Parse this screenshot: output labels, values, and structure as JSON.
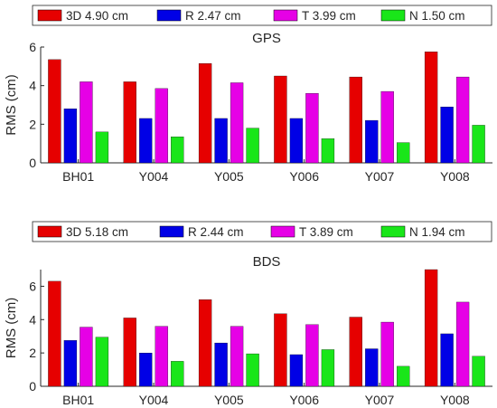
{
  "colors": {
    "3D": "#e60000",
    "R": "#0000e6",
    "T": "#e600e6",
    "N": "#19e619",
    "axis": "#262626"
  },
  "chart_data": [
    {
      "type": "bar",
      "title": "GPS",
      "ylabel": "RMS (cm)",
      "ylim": [
        0,
        6
      ],
      "yticks": [
        "0",
        "2",
        "4",
        "6"
      ],
      "categories": [
        "BH01",
        "Y004",
        "Y005",
        "Y006",
        "Y007",
        "Y008"
      ],
      "legend_position": "top",
      "grid": false,
      "series": [
        {
          "key": "3D",
          "name": "3D 4.90 cm",
          "values": [
            5.35,
            4.2,
            5.15,
            4.5,
            4.45,
            5.75
          ]
        },
        {
          "key": "R",
          "name": "R 2.47 cm",
          "values": [
            2.8,
            2.3,
            2.3,
            2.3,
            2.2,
            2.9
          ]
        },
        {
          "key": "T",
          "name": "T 3.99 cm",
          "values": [
            4.2,
            3.85,
            4.15,
            3.6,
            3.7,
            4.45
          ]
        },
        {
          "key": "N",
          "name": "N 1.50 cm",
          "values": [
            1.6,
            1.35,
            1.8,
            1.25,
            1.05,
            1.95
          ]
        }
      ]
    },
    {
      "type": "bar",
      "title": "BDS",
      "ylabel": "RMS (cm)",
      "ylim": [
        0,
        7
      ],
      "yticks": [
        "0",
        "2",
        "4",
        "6"
      ],
      "categories": [
        "BH01",
        "Y004",
        "Y005",
        "Y006",
        "Y007",
        "Y008"
      ],
      "legend_position": "top",
      "grid": false,
      "series": [
        {
          "key": "3D",
          "name": "3D 5.18 cm",
          "values": [
            6.3,
            4.1,
            5.2,
            4.35,
            4.15,
            7.0
          ]
        },
        {
          "key": "R",
          "name": "R 2.44 cm",
          "values": [
            2.75,
            2.0,
            2.6,
            1.9,
            2.25,
            3.15
          ]
        },
        {
          "key": "T",
          "name": "T 3.89 cm",
          "values": [
            3.55,
            3.6,
            3.6,
            3.7,
            3.85,
            5.05
          ]
        },
        {
          "key": "N",
          "name": "N 1.94 cm",
          "values": [
            2.95,
            1.5,
            1.95,
            2.2,
            1.2,
            1.8
          ]
        }
      ]
    }
  ]
}
